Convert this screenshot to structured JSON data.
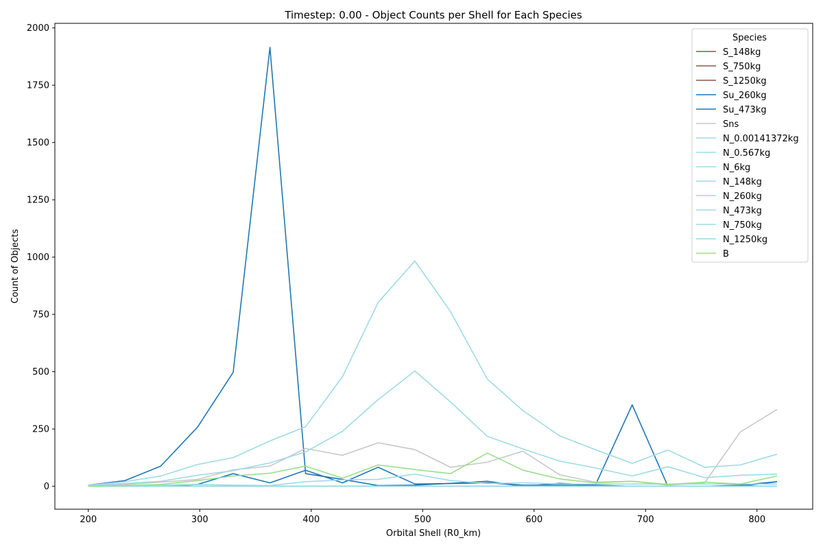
{
  "chart_data": {
    "type": "line",
    "title": "Timestep: 0.00 - Object Counts per Shell for Each Species",
    "xlabel": "Orbital Shell (R0_km)",
    "ylabel": "Count of Objects",
    "xlim": [
      170,
      850
    ],
    "ylim": [
      -100,
      2020
    ],
    "xticks": [
      200,
      300,
      400,
      500,
      600,
      700,
      800
    ],
    "yticks": [
      0,
      250,
      500,
      750,
      1000,
      1250,
      1500,
      1750,
      2000
    ],
    "grid": false,
    "legend_title": "Species",
    "legend_position": "top-right",
    "x": [
      200,
      233,
      265,
      298,
      330,
      363,
      395,
      428,
      460,
      493,
      525,
      558,
      590,
      623,
      655,
      688,
      720,
      753,
      785,
      818
    ],
    "series": [
      {
        "name": "S_148kg",
        "color": "#8c564b",
        "values": [
          0,
          0,
          0,
          0,
          0,
          0,
          0,
          0,
          0,
          0,
          0,
          0,
          0,
          0,
          0,
          0,
          0,
          0,
          0,
          0
        ]
      },
      {
        "name": "S_750kg",
        "color": "#8c564b",
        "values": [
          0,
          0,
          0,
          0,
          0,
          0,
          0,
          0,
          0,
          0,
          0,
          0,
          0,
          0,
          0,
          0,
          0,
          0,
          0,
          0
        ]
      },
      {
        "name": "S_1250kg",
        "color": "#8c564b",
        "values": [
          0,
          0,
          0,
          0,
          0,
          0,
          0,
          0,
          0,
          0,
          0,
          0,
          0,
          0,
          0,
          0,
          0,
          0,
          0,
          0
        ]
      },
      {
        "name": "Su_260kg",
        "color": "#1f77b4",
        "values": [
          5,
          25,
          88,
          258,
          497,
          1915,
          55,
          30,
          3,
          5,
          13,
          22,
          0,
          13,
          5,
          355,
          0,
          0,
          0,
          20
        ]
      },
      {
        "name": "Su_473kg",
        "color": "#1f77b4",
        "values": [
          0,
          0,
          0,
          8,
          55,
          15,
          70,
          15,
          83,
          10,
          12,
          15,
          5,
          5,
          5,
          0,
          0,
          0,
          5,
          20
        ]
      },
      {
        "name": "Sns",
        "color": "#c7c7c7",
        "values": [
          2,
          8,
          18,
          30,
          72,
          88,
          165,
          135,
          190,
          160,
          83,
          105,
          153,
          50,
          18,
          22,
          5,
          15,
          237,
          335
        ]
      },
      {
        "name": "N_0.00141372kg",
        "color": "#9edae5",
        "values": [
          5,
          20,
          45,
          95,
          125,
          198,
          260,
          478,
          802,
          983,
          762,
          468,
          330,
          220,
          160,
          100,
          158,
          83,
          93,
          140
        ]
      },
      {
        "name": "N_0.567kg",
        "color": "#9edae5",
        "values": [
          5,
          12,
          22,
          48,
          68,
          102,
          150,
          240,
          378,
          503,
          368,
          218,
          163,
          110,
          80,
          45,
          85,
          38,
          48,
          53
        ]
      },
      {
        "name": "N_6kg",
        "color": "#9edae5",
        "values": [
          1,
          3,
          5,
          8,
          5,
          3,
          20,
          28,
          30,
          53,
          25,
          12,
          15,
          10,
          10,
          10,
          10,
          10,
          10,
          10
        ]
      },
      {
        "name": "N_148kg",
        "color": "#9edae5",
        "values": [
          0,
          0,
          0,
          0,
          0,
          0,
          0,
          0,
          0,
          0,
          0,
          0,
          0,
          0,
          0,
          0,
          0,
          0,
          0,
          0
        ]
      },
      {
        "name": "N_260kg",
        "color": "#9edae5",
        "values": [
          0,
          0,
          0,
          0,
          0,
          0,
          0,
          0,
          0,
          0,
          0,
          0,
          0,
          0,
          0,
          0,
          0,
          0,
          0,
          0
        ]
      },
      {
        "name": "N_473kg",
        "color": "#9edae5",
        "values": [
          0,
          0,
          0,
          0,
          0,
          0,
          0,
          0,
          0,
          0,
          0,
          0,
          0,
          0,
          0,
          0,
          0,
          0,
          0,
          0
        ]
      },
      {
        "name": "N_750kg",
        "color": "#9edae5",
        "values": [
          0,
          0,
          0,
          0,
          0,
          0,
          0,
          0,
          0,
          0,
          0,
          0,
          0,
          0,
          0,
          0,
          0,
          0,
          0,
          0
        ]
      },
      {
        "name": "N_1250kg",
        "color": "#9edae5",
        "values": [
          0,
          0,
          0,
          0,
          0,
          0,
          0,
          0,
          0,
          0,
          0,
          0,
          0,
          0,
          0,
          0,
          0,
          0,
          0,
          0
        ]
      },
      {
        "name": "B",
        "color": "#98df8a",
        "values": [
          0,
          3,
          8,
          25,
          45,
          57,
          88,
          35,
          93,
          73,
          55,
          145,
          70,
          32,
          15,
          22,
          8,
          18,
          10,
          45
        ]
      }
    ]
  }
}
